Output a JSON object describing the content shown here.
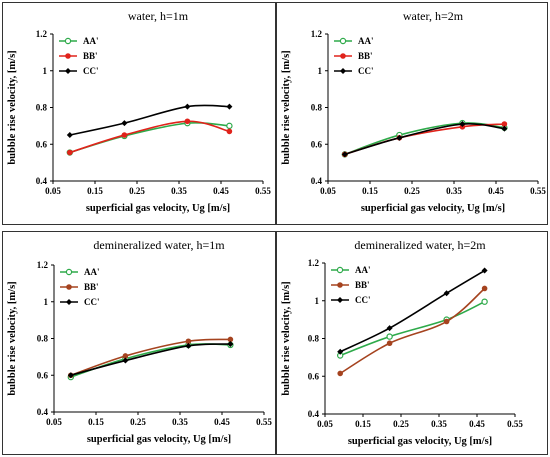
{
  "chart_data": [
    {
      "type": "line",
      "title": "water, h=1m",
      "xlabel": "superficial gas velocity, Ug [m/s]",
      "ylabel": "bubble rise velocity, [m/s]",
      "xlim": [
        0.05,
        0.55
      ],
      "ylim": [
        0.4,
        1.2
      ],
      "xticks": [
        "0.05",
        "0.15",
        "0.25",
        "0.35",
        "0.45",
        "0.55"
      ],
      "yticks": [
        "0.4",
        "0.6",
        "0.8",
        "1",
        "1.2"
      ],
      "legend_position": "top-left",
      "x": [
        0.09,
        0.22,
        0.37,
        0.47
      ],
      "series": [
        {
          "name": "AA'",
          "values": [
            0.555,
            0.645,
            0.715,
            0.7
          ],
          "color": "#2eaa4a",
          "marker": "open-circle"
        },
        {
          "name": "BB'",
          "values": [
            0.555,
            0.65,
            0.725,
            0.67
          ],
          "color": "#e0231b",
          "marker": "filled-circle"
        },
        {
          "name": "CC'",
          "values": [
            0.65,
            0.715,
            0.805,
            0.805
          ],
          "color": "#000000",
          "marker": "filled-diamond"
        }
      ]
    },
    {
      "type": "line",
      "title": "water, h=2m",
      "xlabel": "superficial gas velocity, Ug [m/s]",
      "ylabel": "bubble rise velocity, [m/s]",
      "xlim": [
        0.05,
        0.55
      ],
      "ylim": [
        0.4,
        1.2
      ],
      "xticks": [
        "0.05",
        "0.15",
        "0.25",
        "0.35",
        "0.45",
        "0.55"
      ],
      "yticks": [
        "0.4",
        "0.6",
        "0.8",
        "1",
        "1.2"
      ],
      "legend_position": "top-left",
      "x": [
        0.09,
        0.22,
        0.37,
        0.47
      ],
      "series": [
        {
          "name": "AA'",
          "values": [
            0.545,
            0.65,
            0.715,
            0.69
          ],
          "color": "#2eaa4a",
          "marker": "open-circle"
        },
        {
          "name": "BB'",
          "values": [
            0.545,
            0.635,
            0.695,
            0.71
          ],
          "color": "#e0231b",
          "marker": "filled-circle"
        },
        {
          "name": "CC'",
          "values": [
            0.545,
            0.635,
            0.71,
            0.685
          ],
          "color": "#000000",
          "marker": "filled-diamond"
        }
      ]
    },
    {
      "type": "line",
      "title": "demineralized water, h=1m",
      "xlabel": "superficial gas velocity, Ug [m/s]",
      "ylabel": "bubble rise velocity, [m/s]",
      "xlim": [
        0.05,
        0.55
      ],
      "ylim": [
        0.4,
        1.2
      ],
      "xticks": [
        "0.05",
        "0.15",
        "0.25",
        "0.35",
        "0.45",
        "0.55"
      ],
      "yticks": [
        "0.4",
        "0.6",
        "0.8",
        "1",
        "1.2"
      ],
      "legend_position": "top-left",
      "x": [
        0.09,
        0.22,
        0.37,
        0.47
      ],
      "series": [
        {
          "name": "AA'",
          "values": [
            0.59,
            0.69,
            0.765,
            0.765
          ],
          "color": "#2eaa4a",
          "marker": "open-circle"
        },
        {
          "name": "BB'",
          "values": [
            0.6,
            0.705,
            0.785,
            0.795
          ],
          "color": "#a5431f",
          "marker": "filled-circle"
        },
        {
          "name": "CC'",
          "values": [
            0.6,
            0.68,
            0.76,
            0.77
          ],
          "color": "#000000",
          "marker": "filled-diamond"
        }
      ]
    },
    {
      "type": "line",
      "title": "demineralized water, h=2m",
      "xlabel": "superficial gas velocity, Ug [m/s]",
      "ylabel": "bubble rise velocity, [m/s]",
      "xlim": [
        0.05,
        0.55
      ],
      "ylim": [
        0.4,
        1.2
      ],
      "xticks": [
        "0.05",
        "0.15",
        "0.25",
        "0.35",
        "0.45",
        "0.55"
      ],
      "yticks": [
        "0.4",
        "0.6",
        "0.8",
        "1",
        "1.2"
      ],
      "legend_position": "top-left",
      "x": [
        0.09,
        0.22,
        0.37,
        0.47
      ],
      "series": [
        {
          "name": "AA'",
          "values": [
            0.71,
            0.81,
            0.9,
            0.995
          ],
          "color": "#2eaa4a",
          "marker": "open-circle"
        },
        {
          "name": "BB'",
          "values": [
            0.615,
            0.775,
            0.89,
            1.065
          ],
          "color": "#a5431f",
          "marker": "filled-circle"
        },
        {
          "name": "CC'",
          "values": [
            0.73,
            0.855,
            1.04,
            1.16
          ],
          "color": "#000000",
          "marker": "filled-diamond"
        }
      ]
    }
  ]
}
